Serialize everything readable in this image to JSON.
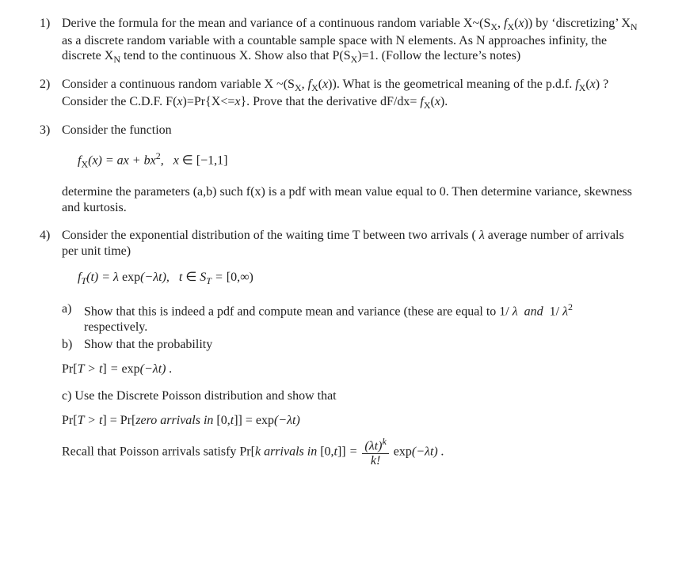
{
  "q1": {
    "num": "1)",
    "text_html": "Derive the formula for the mean and variance of a continuous random variable X~(S<sub>X</sub>, <i>f</i><sub>X</sub>(<i>x</i>)) by &lsquo;discretizing&rsquo; X<sub>N</sub> as a discrete random variable with a countable sample space with N elements. As N approaches infinity, the discrete X<sub>N</sub> tend to the continuous X. Show also that P(S<sub>X</sub>)=1. (Follow the lecture&rsquo;s notes)"
  },
  "q2": {
    "num": "2)",
    "text_html": "Consider a continuous random variable X ~(S<sub>X</sub>, <i>f</i><sub>X</sub>(<i>x</i>)). What is the geometrical meaning of  the p.d.f. <i>f</i><sub>X</sub>(<i>x</i>) ? Consider the C.D.F. F(<i>x</i>)=Pr{X&lt;=<i>x</i>}. Prove that the derivative dF/dx= <i>f</i><sub>X</sub>(<i>x</i>)."
  },
  "q3": {
    "num": "3)",
    "intro": "Consider the function",
    "eq_html": "f<sub><span class=\"upright\">X</span></sub>(x) = ax + bx<sup><span class=\"upright\">2</span></sup>,&nbsp;&nbsp;&nbsp;x <span class=\"upright\">&isin; [&minus;1,1]</span>",
    "after": "determine the parameters (a,b) such f(x) is a pdf with mean value equal to 0. Then determine variance, skewness and kurtosis."
  },
  "q4": {
    "num": "4)",
    "intro_html": "Consider the  exponential distribution of the waiting time T between two arrivals ( <i>&lambda;</i>  average number of arrivals per unit time)",
    "eq1_html": "f<sub>T</sub>(t) = &lambda; <span class=\"upright\">exp</span>(&minus;&lambda;t),&nbsp;&nbsp;&nbsp;t <span class=\"upright\">&isin;</span> S<sub>T</sub> = <span class=\"upright\">[0,&infin;)</span>",
    "a_label": "a)",
    "a_html": "Show that this is indeed a pdf  and compute mean and variance (these are equal to  1/ <i>&lambda;</i> &nbsp;<i>and</i>&nbsp; 1/ <i>&lambda;</i><sup>2</sup> respectively.",
    "b_label": "b)",
    "b_text": "Show that the probability",
    "eq2_html": "<span class=\"upright\">Pr[</span>T &gt; t<span class=\"upright\">]</span> = <span class=\"upright\">exp</span>(&minus;&lambda;t) .",
    "c_text": "c) Use the Discrete Poisson distribution and show that",
    "eq3_html": "<span class=\"upright\">Pr[</span>T &gt; t<span class=\"upright\">] = Pr[</span>zero arrivals in <span class=\"upright\">[0,</span>t<span class=\"upright\">]] = exp</span>(&minus;&lambda;t)",
    "recall_pre_html": "Recall that Poisson arrivals satisfy  <span style=\"font-style:italic\"><span class=\"upright\">Pr[</span>k arrivals in <span class=\"upright\">[0,</span>t<span class=\"upright\">]]</span> = </span>",
    "frac_top_html": "(&lambda;t)<sup>k</sup>",
    "frac_bot_html": "k!",
    "recall_post_html": " <span class=\"upright\">exp</span>(&minus;<i>&lambda;t</i>) ."
  }
}
